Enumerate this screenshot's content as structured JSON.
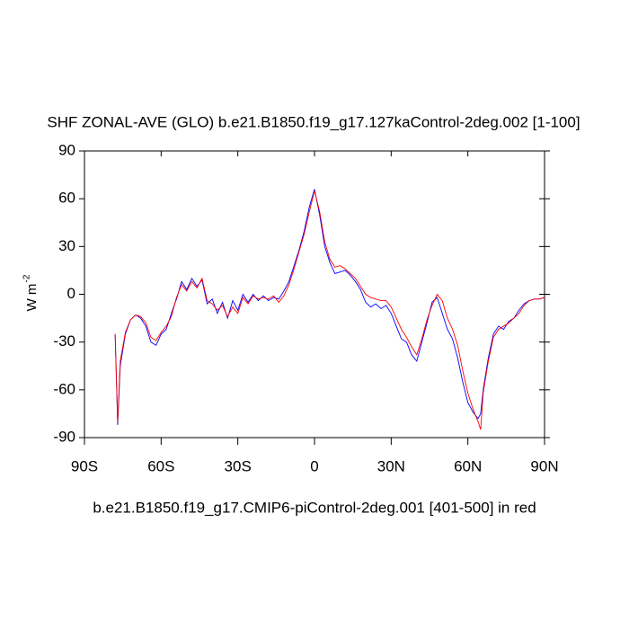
{
  "chart_data": {
    "type": "line",
    "title": "SHF ZONAL-AVE (GLO) b.e21.B1850.f19_g17.127kaControl-2deg.002 [1-100]",
    "xlabel": "b.e21.B1850.f19_g17.CMIP6-piControl-2deg.001 [401-500] in red",
    "ylabel": "W m",
    "ylabel_superscript": "-2",
    "xlim": [
      -90,
      90
    ],
    "xticks": [
      {
        "value": -90,
        "label": "90S"
      },
      {
        "value": -60,
        "label": "60S"
      },
      {
        "value": -30,
        "label": "30S"
      },
      0,
      {
        "value": 30,
        "label": "30N"
      },
      {
        "value": 60,
        "label": "60N"
      },
      {
        "value": 90,
        "label": "90N"
      }
    ],
    "ylim": [
      -90,
      90
    ],
    "yticks": [
      -90,
      -60,
      -30,
      0,
      30,
      60,
      90
    ],
    "x": [
      -78,
      -77,
      -76,
      -74,
      -72,
      -70,
      -68,
      -66,
      -64,
      -62,
      -60,
      -58,
      -56,
      -54,
      -52,
      -50,
      -48,
      -46,
      -44,
      -42,
      -40,
      -38,
      -36,
      -34,
      -32,
      -30,
      -28,
      -26,
      -24,
      -22,
      -20,
      -18,
      -16,
      -14,
      -12,
      -10,
      -8,
      -6,
      -4,
      -2,
      0,
      2,
      4,
      6,
      8,
      10,
      12,
      14,
      16,
      18,
      20,
      22,
      24,
      26,
      28,
      30,
      32,
      34,
      36,
      38,
      40,
      42,
      44,
      46,
      48,
      50,
      52,
      54,
      56,
      58,
      60,
      62,
      64,
      65,
      66,
      68,
      70,
      72,
      74,
      76,
      78,
      80,
      82,
      84,
      86,
      88,
      90
    ],
    "series": [
      {
        "color": "#0000ff",
        "values": [
          -25,
          -82,
          -45,
          -25,
          -16,
          -13,
          -15,
          -20,
          -30,
          -32,
          -25,
          -22,
          -12,
          -3,
          8,
          3,
          10,
          5,
          9,
          -6,
          -3,
          -12,
          -5,
          -15,
          -4,
          -10,
          0,
          -5,
          0,
          -4,
          -1,
          -4,
          -2,
          -3,
          2,
          8,
          18,
          28,
          40,
          55,
          66,
          50,
          30,
          20,
          13,
          14,
          15,
          12,
          8,
          3,
          -5,
          -8,
          -6,
          -9,
          -7,
          -12,
          -20,
          -28,
          -30,
          -38,
          -42,
          -30,
          -18,
          -5,
          -2,
          -12,
          -22,
          -28,
          -40,
          -55,
          -68,
          -74,
          -78,
          -75,
          -60,
          -40,
          -25,
          -20,
          -22,
          -17,
          -15,
          -10,
          -6,
          -4,
          -3,
          -3,
          -2
        ]
      },
      {
        "color": "#ff0000",
        "values": [
          -25,
          -80,
          -42,
          -24,
          -16,
          -13,
          -14,
          -18,
          -27,
          -29,
          -24,
          -20,
          -14,
          -2,
          6,
          2,
          8,
          4,
          10,
          -4,
          -6,
          -10,
          -7,
          -14,
          -8,
          -12,
          -2,
          -6,
          -1,
          -3,
          -2,
          -3,
          -1,
          -5,
          -1,
          6,
          16,
          27,
          38,
          52,
          65,
          52,
          33,
          22,
          17,
          18,
          16,
          13,
          10,
          5,
          0,
          -2,
          -3,
          -4,
          -4,
          -8,
          -15,
          -22,
          -27,
          -33,
          -38,
          -28,
          -16,
          -7,
          0,
          -4,
          -15,
          -22,
          -32,
          -48,
          -62,
          -72,
          -80,
          -85,
          -62,
          -42,
          -27,
          -22,
          -20,
          -18,
          -15,
          -12,
          -7,
          -4,
          -3,
          -3,
          -2
        ]
      }
    ]
  }
}
